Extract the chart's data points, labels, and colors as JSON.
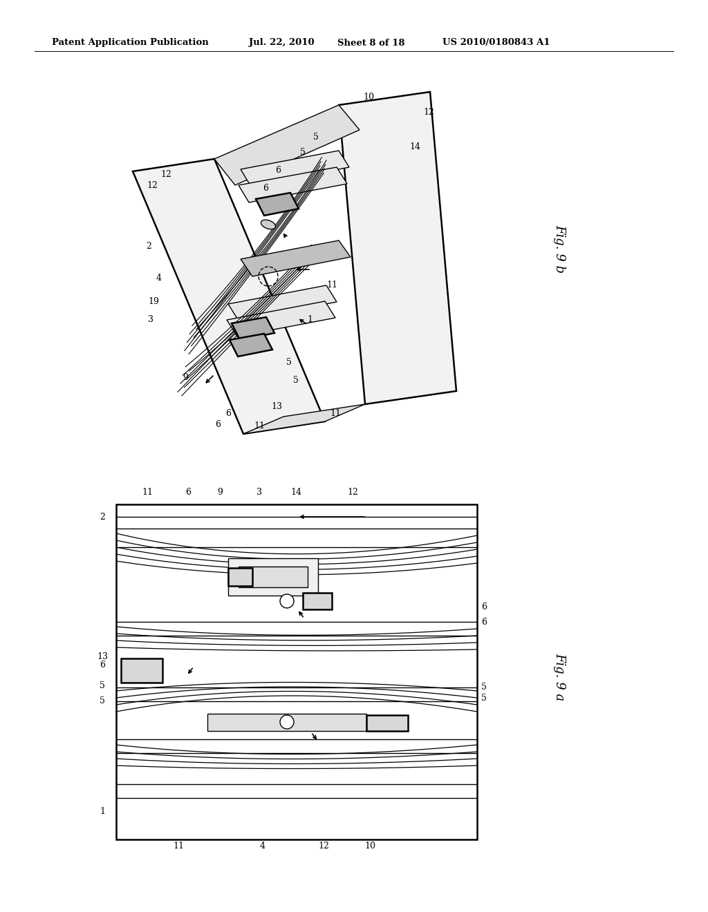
{
  "background_color": "#ffffff",
  "header_text": "Patent Application Publication",
  "header_date": "Jul. 22, 2010",
  "header_sheet": "Sheet 8 of 18",
  "header_patent": "US 2010/0180843 A1",
  "fig_top_label": "Fig. 9 b",
  "fig_bottom_label": "Fig. 9 a",
  "line_color": "#000000",
  "lw": 1.0,
  "hlw": 1.8,
  "fs_header": 9.5,
  "fs_fig": 13,
  "fs_ref": 9
}
